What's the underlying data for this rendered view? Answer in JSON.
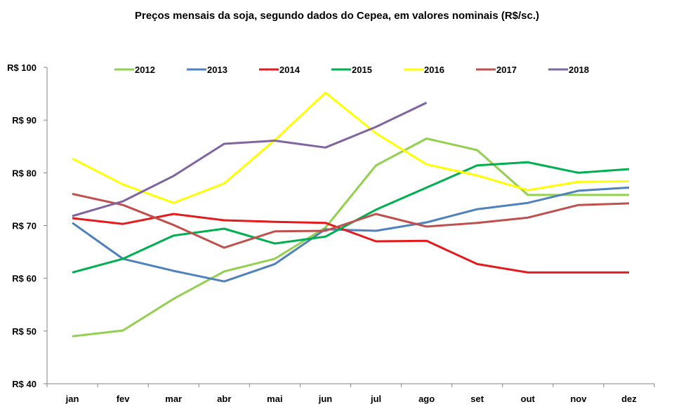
{
  "chart_data": {
    "type": "line",
    "title": "Preços mensais da soja, segundo dados do Cepea, em valores nominais  (R$/sc.)",
    "xlabel": "",
    "ylabel": "",
    "categories": [
      "jan",
      "fev",
      "mar",
      "abr",
      "mai",
      "jun",
      "jul",
      "ago",
      "set",
      "out",
      "nov",
      "dez"
    ],
    "ylim": [
      40,
      100
    ],
    "yticks": [
      40,
      50,
      60,
      70,
      80,
      90,
      100
    ],
    "ytick_labels": [
      "R$ 40",
      "R$ 50",
      "R$ 60",
      "R$ 70",
      "R$ 80",
      "R$ 90",
      "R$ 100"
    ],
    "grid": false,
    "legend_position": "top",
    "series": [
      {
        "name": "2012",
        "color": "#92D050",
        "values": [
          49.0,
          50.1,
          56.1,
          61.3,
          63.7,
          69.6,
          81.4,
          86.5,
          84.3,
          75.8,
          75.8,
          75.8
        ]
      },
      {
        "name": "2013",
        "color": "#4F81BD",
        "values": [
          70.5,
          63.7,
          61.4,
          59.4,
          62.7,
          69.3,
          69.0,
          70.6,
          73.1,
          74.3,
          76.6,
          77.2
        ]
      },
      {
        "name": "2014",
        "color": "#E41A1C",
        "values": [
          71.4,
          70.3,
          72.2,
          71.0,
          70.7,
          70.5,
          67.0,
          67.1,
          62.7,
          61.1,
          61.1,
          61.1
        ]
      },
      {
        "name": "2015",
        "color": "#00B050",
        "values": [
          61.1,
          63.7,
          68.1,
          69.4,
          66.6,
          67.9,
          73.0,
          77.2,
          81.4,
          82.0,
          80.0,
          80.7
        ]
      },
      {
        "name": "2016",
        "color": "#FFFF00",
        "values": [
          82.7,
          77.8,
          74.3,
          78.0,
          86.2,
          95.2,
          87.5,
          81.6,
          79.5,
          76.7,
          78.3,
          78.4
        ]
      },
      {
        "name": "2017",
        "color": "#C0504D",
        "values": [
          76.0,
          73.9,
          70.1,
          65.8,
          68.9,
          69.0,
          72.2,
          69.8,
          70.5,
          71.5,
          73.9,
          74.2
        ]
      },
      {
        "name": "2018",
        "color": "#8064A2",
        "values": [
          71.8,
          74.6,
          79.4,
          85.5,
          86.1,
          84.8,
          88.7,
          93.3
        ]
      }
    ]
  }
}
